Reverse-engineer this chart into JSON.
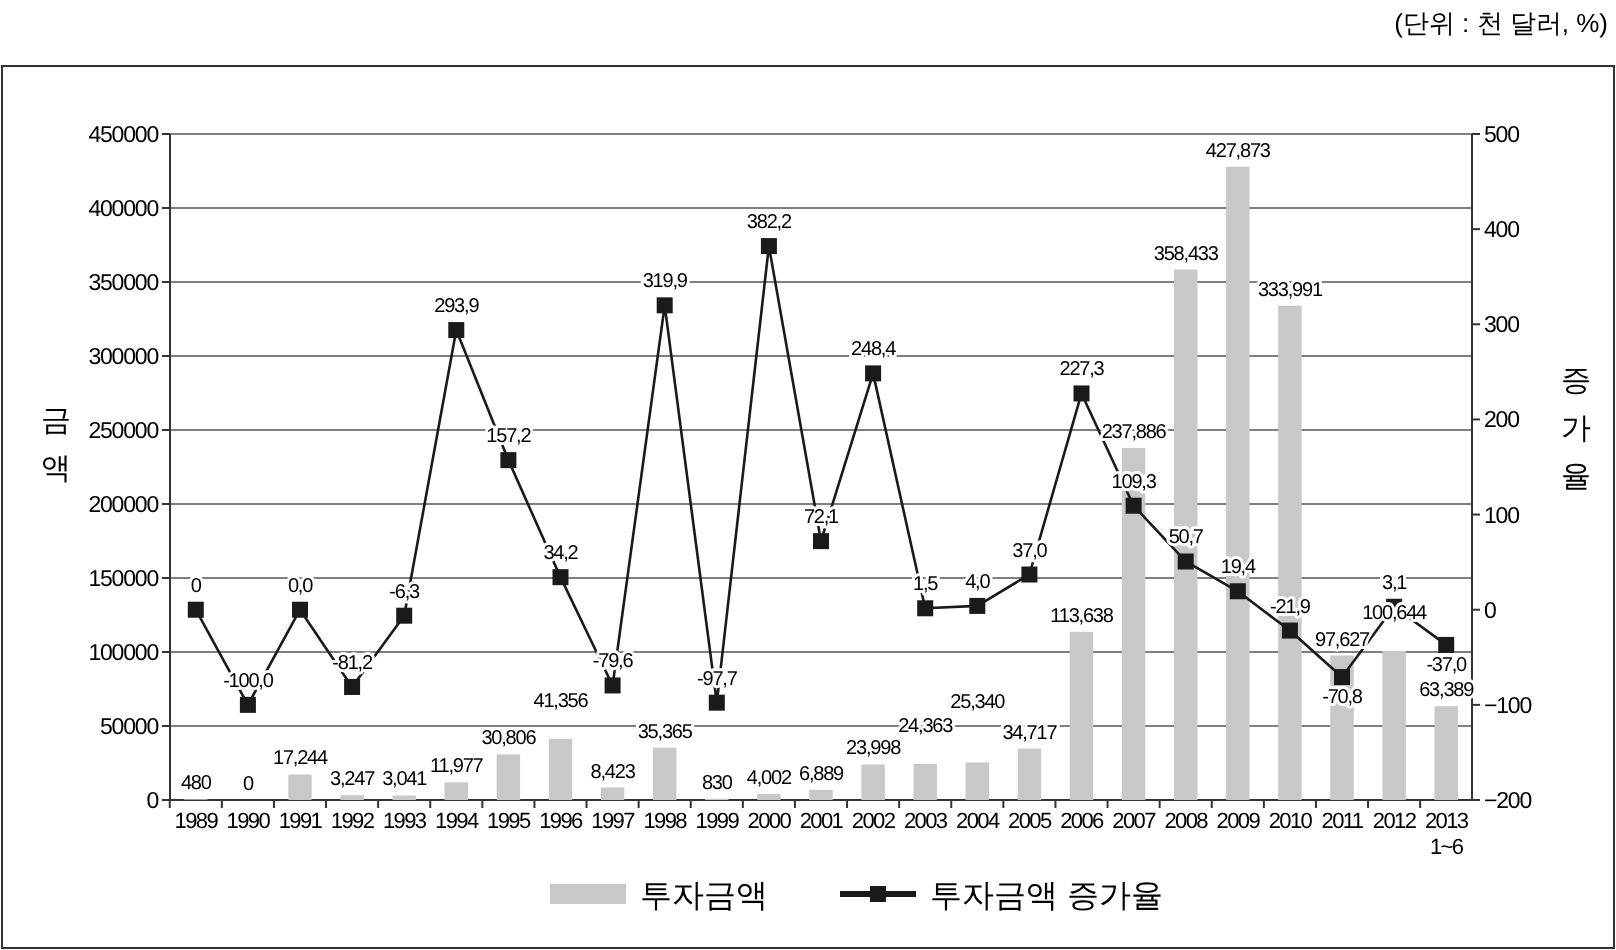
{
  "chart_data": {
    "type": "bar",
    "annotations": [
      "(단위 : 천 달러, %)"
    ],
    "ylabel": "금액",
    "y2label": "증가율",
    "categories": [
      "1989",
      "1990",
      "1991",
      "1992",
      "1993",
      "1994",
      "1995",
      "1996",
      "1997",
      "1998",
      "1999",
      "2000",
      "2001",
      "2002",
      "2003",
      "2004",
      "2005",
      "2006",
      "2007",
      "2008",
      "2009",
      "2010",
      "2011",
      "2012",
      "2013\n1~6"
    ],
    "series": [
      {
        "name": "투자금액",
        "color": "#c8c8c8",
        "values": [
          480,
          0,
          17244,
          3247,
          3041,
          11977,
          30806,
          41356,
          8423,
          35365,
          830,
          4002,
          6889,
          23998,
          24363,
          25340,
          34717,
          113638,
          237886,
          358433,
          427873,
          333991,
          97627,
          100644,
          63389
        ],
        "value_labels": [
          "480",
          "0",
          "17,244",
          "3,247",
          "3,041",
          "11,977",
          "30,806",
          "41,356",
          "8,423",
          "35,365",
          "830",
          "4,002",
          "6,889",
          "23,998",
          "24,363",
          "25,340",
          "34,717",
          "113,638",
          "237,886",
          "358,433",
          "427,873",
          "333,991",
          "97,627",
          "100,644",
          "63,389"
        ]
      },
      {
        "name": "투자금액 증가율",
        "type": "line",
        "axis": "y2",
        "color": "#1a1a1a",
        "marker": "square",
        "values": [
          0,
          -100.0,
          0.0,
          -81.2,
          -6.3,
          293.9,
          157.2,
          34.2,
          -79.6,
          319.9,
          -97.7,
          382.2,
          72.1,
          248.4,
          1.5,
          4.0,
          37.0,
          227.3,
          109.3,
          50.7,
          19.4,
          -21.9,
          -70.8,
          3.1,
          -37.0
        ],
        "value_labels": [
          "0",
          "-100,0",
          "0,0",
          "-81,2",
          "-6,3",
          "293,9",
          "157,2",
          "34,2",
          "-79,6",
          "319,9",
          "-97,7",
          "382,2",
          "72,1",
          "248,4",
          "1,5",
          "4,0",
          "37,0",
          "227,3",
          "109,3",
          "50,7",
          "19,4",
          "-21,9",
          "-70,8",
          "3,1",
          "-37,0"
        ]
      }
    ],
    "ylim": [
      0,
      450000
    ],
    "yticks": [
      0,
      50000,
      100000,
      150000,
      200000,
      250000,
      300000,
      350000,
      400000,
      450000
    ],
    "y2lim": [
      -200,
      500
    ],
    "y2ticks": [
      -200,
      -100,
      0,
      100,
      200,
      300,
      400,
      500
    ],
    "grid": "y",
    "legend": "bottom"
  }
}
